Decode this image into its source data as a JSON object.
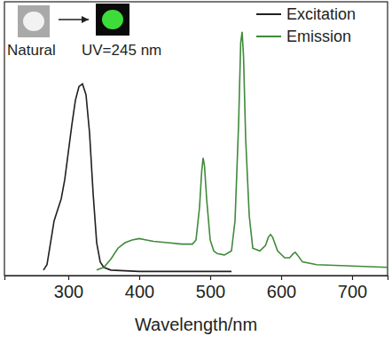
{
  "chart_data": {
    "type": "line",
    "x_label": "Wavelength/nm",
    "xlim": [
      210,
      750
    ],
    "xticks": [
      300,
      400,
      500,
      600,
      700
    ],
    "ylim": [
      0,
      100
    ],
    "tick_labels": "x",
    "grid": false,
    "legend": "upper right",
    "annotations": [
      "Natural",
      "UV=245 nm"
    ],
    "series": [
      {
        "name": "Excitation",
        "color": "#231f20",
        "x": [
          265,
          270,
          275,
          280,
          285,
          290,
          295,
          300,
          305,
          310,
          315,
          320,
          325,
          330,
          335,
          340,
          345,
          350,
          360,
          400,
          450,
          500,
          530
        ],
        "values": [
          2,
          4,
          12,
          20,
          24,
          28,
          35,
          45,
          55,
          64,
          69,
          70,
          66,
          52,
          30,
          12,
          5,
          3,
          2,
          1.5,
          1.5,
          1.5,
          1.5
        ]
      },
      {
        "name": "Emission",
        "color": "#3f8a3a",
        "x": [
          340,
          350,
          360,
          370,
          380,
          390,
          400,
          410,
          420,
          440,
          460,
          475,
          480,
          485,
          488,
          490,
          492,
          495,
          500,
          505,
          510,
          520,
          530,
          535,
          540,
          543,
          545,
          547,
          550,
          555,
          560,
          570,
          578,
          582,
          585,
          588,
          595,
          605,
          612,
          617,
          620,
          623,
          630,
          650,
          700,
          750
        ],
        "values": [
          2,
          3,
          6,
          10,
          12,
          13,
          13.5,
          13,
          12.5,
          12,
          11.5,
          11.5,
          13,
          25,
          38,
          43,
          40,
          28,
          13,
          9,
          8,
          7.5,
          9,
          20,
          55,
          85,
          89,
          80,
          50,
          22,
          10,
          9,
          11,
          14,
          15,
          14,
          9,
          6.5,
          6.5,
          8,
          8.5,
          7.5,
          5,
          4,
          3.5,
          3
        ]
      }
    ]
  }
}
